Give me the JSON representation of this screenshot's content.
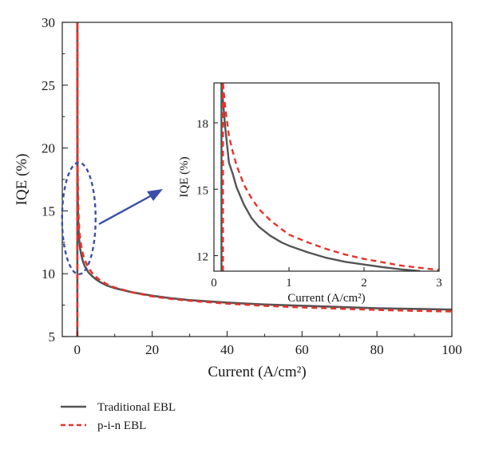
{
  "chart_data": [
    {
      "id": "main",
      "type": "line",
      "title": "",
      "xlabel": "Current (A/cm²)",
      "ylabel": "IQE (%)",
      "xlim": [
        -4,
        100
      ],
      "ylim": [
        5,
        30
      ],
      "xticks": [
        0,
        20,
        40,
        60,
        80,
        100
      ],
      "yticks": [
        5,
        10,
        15,
        20,
        25,
        30
      ],
      "grid": false,
      "series": [
        {
          "name": "Traditional EBL",
          "color": "#555555",
          "style": "solid",
          "x": [
            0.02,
            0.03,
            0.05,
            0.08,
            0.1,
            0.15,
            0.2,
            0.3,
            0.5,
            0.75,
            1,
            1.5,
            2,
            3,
            4,
            5,
            6,
            8,
            10,
            15,
            20,
            25,
            30,
            40,
            50,
            60,
            70,
            80,
            90,
            100
          ],
          "y": [
            30,
            25,
            21,
            18.5,
            17.5,
            16.0,
            15.0,
            13.8,
            12.7,
            12.05,
            11.6,
            11.0,
            10.6,
            10.1,
            9.8,
            9.55,
            9.35,
            9.05,
            8.85,
            8.5,
            8.25,
            8.05,
            7.9,
            7.7,
            7.55,
            7.45,
            7.35,
            7.25,
            7.2,
            7.15
          ]
        },
        {
          "name": "p-i-n EBL",
          "color": "#e8322a",
          "style": "dashed",
          "x": [
            0.02,
            0.03,
            0.05,
            0.08,
            0.1,
            0.15,
            0.2,
            0.3,
            0.5,
            0.75,
            1,
            1.5,
            2,
            3,
            4,
            5,
            6,
            8,
            10,
            15,
            20,
            25,
            30,
            40,
            50,
            60,
            70,
            80,
            90,
            100
          ],
          "y": [
            30,
            25.5,
            22,
            19.5,
            18.6,
            17.2,
            16.3,
            14.9,
            13.6,
            12.85,
            12.3,
            11.55,
            11.1,
            10.45,
            10.05,
            9.75,
            9.5,
            9.15,
            8.9,
            8.5,
            8.2,
            8.0,
            7.85,
            7.62,
            7.45,
            7.32,
            7.22,
            7.12,
            7.05,
            7.0
          ]
        }
      ],
      "legend": {
        "position": "bottom-left",
        "entries": [
          "Traditional EBL",
          "p-i-n EBL"
        ]
      },
      "annotations": [
        {
          "type": "dashed-ellipse",
          "color": "#3a4fa8",
          "around": "x≈0, IQE 10–19"
        },
        {
          "type": "arrow",
          "color": "#3a4fa8",
          "points_to": "inset"
        }
      ]
    },
    {
      "id": "inset",
      "type": "line",
      "title": "",
      "xlabel": "Current (A/cm²)",
      "ylabel": "IQE (%)",
      "xlim": [
        0,
        3
      ],
      "ylim": [
        11.3,
        19.8
      ],
      "xticks": [
        0,
        1,
        2,
        3
      ],
      "yticks": [
        12,
        15,
        18
      ],
      "grid": false,
      "series": [
        {
          "name": "Traditional EBL",
          "color": "#555555",
          "style": "solid",
          "x": [
            0.1,
            0.15,
            0.2,
            0.25,
            0.3,
            0.4,
            0.5,
            0.6,
            0.75,
            0.9,
            1.0,
            1.25,
            1.5,
            1.75,
            2.0,
            2.25,
            2.5,
            2.75
          ],
          "y": [
            19.8,
            17.8,
            16.2,
            15.7,
            15.1,
            14.3,
            13.7,
            13.3,
            12.9,
            12.6,
            12.45,
            12.15,
            11.9,
            11.72,
            11.6,
            11.48,
            11.38,
            11.3
          ]
        },
        {
          "name": "p-i-n EBL",
          "color": "#e8322a",
          "style": "dashed",
          "x": [
            0.12,
            0.15,
            0.2,
            0.25,
            0.3,
            0.4,
            0.5,
            0.6,
            0.75,
            0.9,
            1.0,
            1.25,
            1.5,
            1.75,
            2.0,
            2.25,
            2.5,
            2.75,
            3.0
          ],
          "y": [
            19.8,
            18.7,
            17.4,
            16.7,
            16.1,
            15.2,
            14.6,
            14.1,
            13.6,
            13.2,
            12.95,
            12.6,
            12.3,
            12.05,
            11.85,
            11.7,
            11.55,
            11.45,
            11.35
          ]
        }
      ]
    }
  ]
}
